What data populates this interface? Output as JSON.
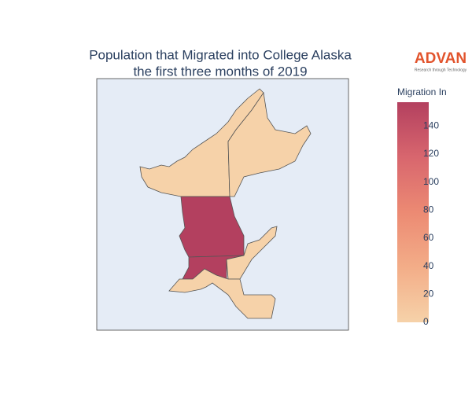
{
  "chart_data": {
    "type": "choropleth",
    "title": "Population that Migrated into College Alaska",
    "subtitle": "the first three months of 2019",
    "values": [
      0,
      0,
      157,
      157,
      0,
      0
    ],
    "colorbar": {
      "title": "Migration In",
      "lim": [
        0,
        157
      ],
      "ticks": [
        0,
        20,
        40,
        60,
        80,
        100,
        120,
        140
      ],
      "colorscale": [
        "#f6d2a9",
        "#f3ad88",
        "#ec8a73",
        "#d8666e",
        "#b3405f"
      ]
    },
    "logo": {
      "name": "ADVAN",
      "tagline": "Research through Technology"
    }
  }
}
